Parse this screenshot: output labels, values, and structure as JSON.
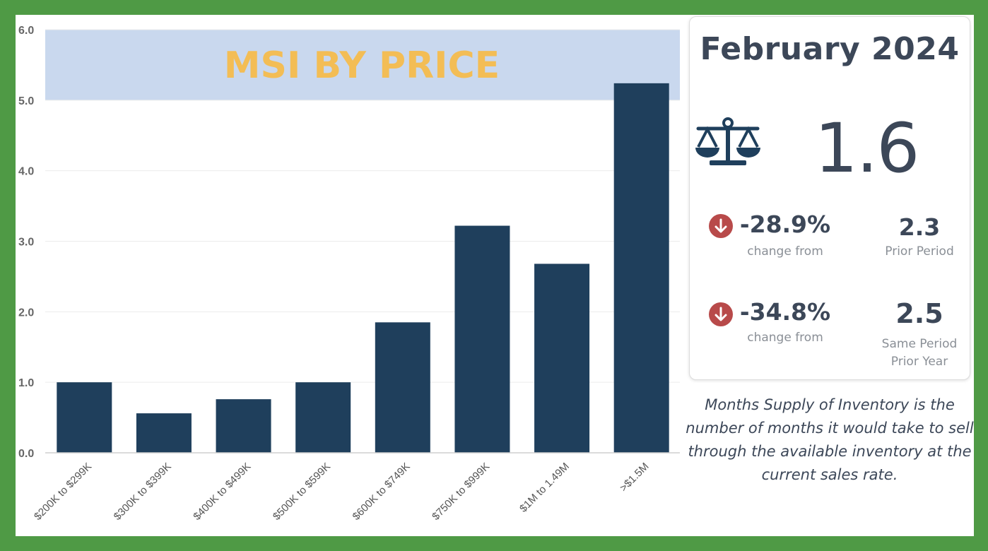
{
  "chart_data": {
    "type": "bar",
    "title": "MSI BY PRICE",
    "categories": [
      "$200K to $299K",
      "$300K to $399K",
      "$400K to $499K",
      "$500K to $599K",
      "$600K to $749K",
      "$750K to $999K",
      "$1M to 1.49M",
      ">$1.5M"
    ],
    "values": [
      1.0,
      0.56,
      0.76,
      1.0,
      1.85,
      3.22,
      2.68,
      5.24
    ],
    "yticks": [
      "0.0",
      "1.0",
      "2.0",
      "3.0",
      "4.0",
      "5.0",
      "6.0"
    ],
    "ylim": [
      0,
      6
    ],
    "title_band": [
      5,
      6
    ],
    "grid": true,
    "xlabel": "",
    "ylabel": "",
    "colors": {
      "bar": "#1f3f5c",
      "band": "#c9d8ee",
      "title": "#f3bd55",
      "grid": "#ececec"
    }
  },
  "stats": {
    "period": "February 2024",
    "icon": "scale-balance-icon",
    "value": "1.6",
    "rows": [
      {
        "icon": "arrow-down-circle-icon",
        "pct": "-28.9%",
        "pct_label": "change from",
        "ref_value": "2.3",
        "ref_label": [
          "Prior Period"
        ]
      },
      {
        "icon": "arrow-down-circle-icon",
        "pct": "-34.8%",
        "pct_label": "change from",
        "ref_value": "2.5",
        "ref_label": [
          "Same Period",
          "Prior Year"
        ]
      }
    ],
    "colors": {
      "down": "#b84a4a",
      "text": "#3c4758",
      "muted": "#8a8f96",
      "icon": "#1f3f5c"
    }
  },
  "definition": "Months Supply of Inventory is the number of months it would take to sell through the available inventory at the current sales rate.",
  "colors": {
    "frame": "#4f9a45",
    "background": "#ffffff"
  }
}
